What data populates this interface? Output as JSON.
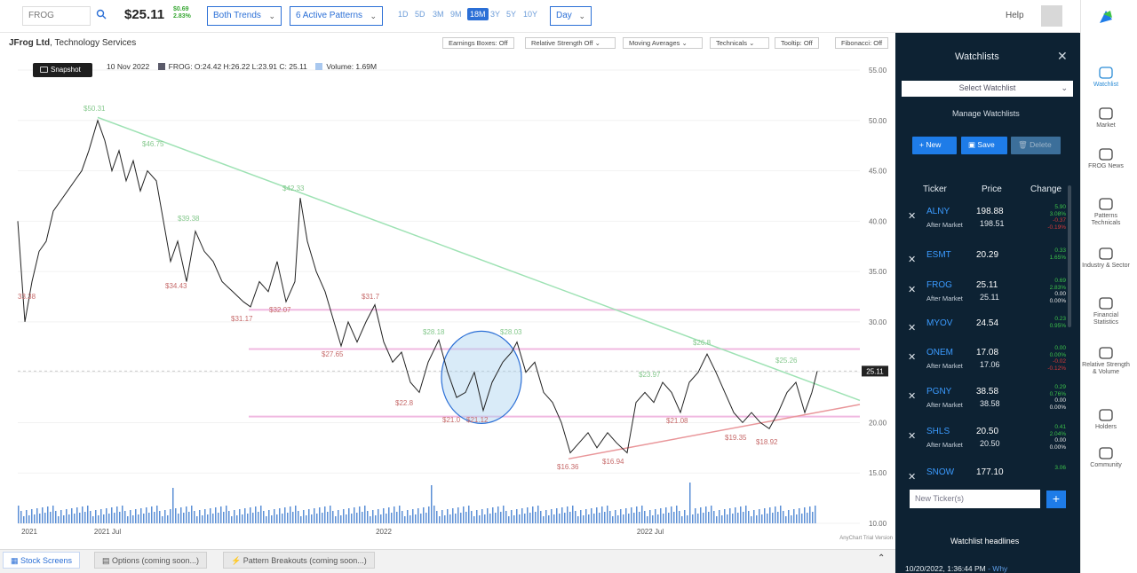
{
  "header": {
    "ticker_input_value": "FROG",
    "price": "$25.11",
    "change_abs": "$0.69",
    "change_pct": "2.83%",
    "trends_dropdown": "Both Trends",
    "patterns_dropdown": "6 Active Patterns",
    "timeframes": [
      "1D",
      "5D",
      "3M",
      "9M",
      "18M",
      "3Y",
      "5Y",
      "10Y"
    ],
    "active_timeframe": "18M",
    "interval_dropdown": "Day",
    "help_label": "Help"
  },
  "subbar": {
    "company_name": "JFrog Ltd",
    "sector": ", Technology Services",
    "toggles": [
      "Earnings Boxes: Off",
      "Relative Strength Off",
      "Moving Averages",
      "Technicals",
      "Tooltip: Off",
      "Fibonacci: Off"
    ]
  },
  "chart_header": {
    "snapshot_label": "Snapshot",
    "date": "10 Nov 2022",
    "ohlc": "FROG: O:24.42 H:26.22 L:23.91 C: 25.11",
    "volume": "Volume: 1.69M"
  },
  "chart_data": {
    "type": "line",
    "title": "",
    "xlabel": "",
    "ylabel": "",
    "ylim": [
      10,
      55
    ],
    "y_ticks": [
      "55.00",
      "50.00",
      "45.00",
      "40.00",
      "35.00",
      "30.00",
      "25.00",
      "20.00",
      "15.00",
      "10.00"
    ],
    "x_ticks": [
      "2021",
      "2021 Jul",
      "2022",
      "2022 Jul"
    ],
    "last_price_label": "25.11",
    "annotations": [
      "$50.31",
      "$46.75",
      "$42.33",
      "$39.38",
      "$34.43",
      "$31.17",
      "$32.07",
      "$27.65",
      "$31.7",
      "$28.18",
      "$28.03",
      "$22.8",
      "$21.0",
      "$21.12",
      "$16.36",
      "$16.94",
      "$23.97",
      "$21.08",
      "$26.8",
      "$19.35",
      "$25.26",
      "$18.92",
      "33.38"
    ],
    "watermark": "AnyChart Trial Version"
  },
  "bottom_tabs": [
    "Stock Screens",
    "Options (coming soon...)",
    "Pattern Breakouts (coming soon...)"
  ],
  "watchlist": {
    "title": "Watchlists",
    "select_placeholder": "Select Watchlist",
    "manage_label": "Manage Watchlists",
    "buttons": {
      "new": "New",
      "save": "Save",
      "delete": "Delete"
    },
    "columns": {
      "ticker": "Ticker",
      "price": "Price",
      "change": "Change"
    },
    "rows": [
      {
        "ticker": "ALNY",
        "after": "After Market",
        "price": "198.88",
        "after_price": "198.51",
        "chg1": "5.90",
        "chg2": "3.08%",
        "chg3": "-0.37",
        "chg4": "-0.19%"
      },
      {
        "ticker": "ESMT",
        "after": "",
        "price": "20.29",
        "after_price": "",
        "chg1": "0.33",
        "chg2": "1.65%",
        "chg3": "",
        "chg4": ""
      },
      {
        "ticker": "FROG",
        "after": "After Market",
        "price": "25.11",
        "after_price": "25.11",
        "chg1": "0.69",
        "chg2": "2.83%",
        "chg3": "0.00",
        "chg4": "0.00%"
      },
      {
        "ticker": "MYOV",
        "after": "",
        "price": "24.54",
        "after_price": "",
        "chg1": "0.23",
        "chg2": "0.95%",
        "chg3": "",
        "chg4": ""
      },
      {
        "ticker": "ONEM",
        "after": "After Market",
        "price": "17.08",
        "after_price": "17.06",
        "chg1": "0.00",
        "chg2": "0.00%",
        "chg3": "-0.02",
        "chg4": "-0.12%"
      },
      {
        "ticker": "PGNY",
        "after": "After Market",
        "price": "38.58",
        "after_price": "38.58",
        "chg1": "0.29",
        "chg2": "0.76%",
        "chg3": "0.00",
        "chg4": "0.00%"
      },
      {
        "ticker": "SHLS",
        "after": "After Market",
        "price": "20.50",
        "after_price": "20.50",
        "chg1": "0.41",
        "chg2": "2.04%",
        "chg3": "0.00",
        "chg4": "0.00%"
      },
      {
        "ticker": "SNOW",
        "after": "",
        "price": "177.10",
        "after_price": "",
        "chg1": "3.06",
        "chg2": "",
        "chg3": "",
        "chg4": ""
      }
    ],
    "new_ticker_placeholder": "New Ticker(s)",
    "headlines_title": "Watchlist headlines",
    "headline_time": "10/20/2022, 1:36:44 PM",
    "headline_src": " - Why"
  },
  "sidenav": [
    {
      "label": "Watchlist",
      "icon": "eye-icon"
    },
    {
      "label": "Market",
      "icon": "candles-icon"
    },
    {
      "label": "FROG News",
      "icon": "news-icon"
    },
    {
      "label": "Patterns Technicals",
      "icon": "patterns-icon"
    },
    {
      "label": "Industry & Sector",
      "icon": "pie-icon"
    },
    {
      "label": "Financial Statistics",
      "icon": "bank-icon"
    },
    {
      "label": "Relative Strength & Volume",
      "icon": "scale-icon"
    },
    {
      "label": "Holders",
      "icon": "holders-icon"
    },
    {
      "label": "Community",
      "icon": "globe-icon"
    }
  ],
  "colors": {
    "accent": "#2b6fd6",
    "panel_bg": "#0d2233",
    "up": "#3cc24a",
    "down": "#d63a3a",
    "trend_line": "#8fe0a8"
  }
}
